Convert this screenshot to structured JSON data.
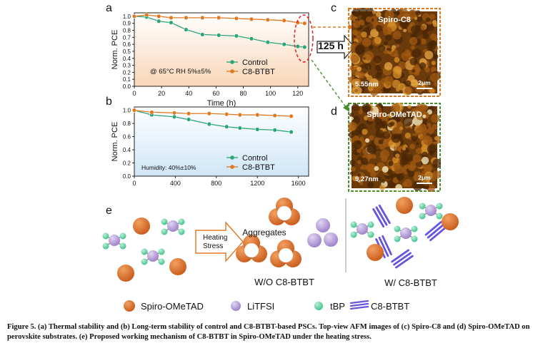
{
  "panels": {
    "a": "a",
    "b": "b",
    "c": "c",
    "d": "d",
    "e": "e"
  },
  "chart_data": [
    {
      "type": "line",
      "panel": "a",
      "xlabel": "Time (h)",
      "ylabel": "Norm. PCE",
      "xlim": [
        0,
        128
      ],
      "ylim": [
        0,
        1.05
      ],
      "xticks": [
        0,
        20,
        40,
        60,
        80,
        100,
        120
      ],
      "yticks": [
        "0.0",
        "0.1",
        "0.2",
        "0.3",
        "0.4",
        "0.5",
        "0.6",
        "0.7",
        "0.8",
        "0.9",
        "1.0"
      ],
      "annotation": "@ 65°C RH 5%±5%",
      "legend": "center-right",
      "background": "#f8d6b8",
      "series": [
        {
          "name": "Control",
          "color": "#2aa577",
          "x": [
            0,
            9,
            18,
            27,
            38,
            50,
            62,
            75,
            86,
            98,
            110,
            120,
            125
          ],
          "y": [
            1.0,
            0.99,
            0.93,
            0.91,
            0.81,
            0.74,
            0.73,
            0.72,
            0.68,
            0.63,
            0.6,
            0.57,
            0.56
          ]
        },
        {
          "name": "C8-BTBT",
          "color": "#e07820",
          "x": [
            0,
            9,
            18,
            27,
            38,
            50,
            62,
            75,
            86,
            98,
            110,
            120,
            125
          ],
          "y": [
            1.0,
            1.02,
            1.0,
            0.98,
            0.98,
            0.98,
            0.98,
            0.97,
            0.96,
            0.95,
            0.94,
            0.91,
            0.9
          ]
        }
      ]
    },
    {
      "type": "line",
      "panel": "b",
      "xlabel": "",
      "ylabel": "Norm. PCE",
      "xlim": [
        0,
        1700
      ],
      "ylim": [
        0,
        1.05
      ],
      "xticks": [
        0,
        400,
        800,
        1200,
        1600
      ],
      "yticks": [
        "0.0",
        "0.2",
        "0.4",
        "0.6",
        "0.8",
        "1.0"
      ],
      "annotation": "Humidity: 40%±10%",
      "legend": "lower-right",
      "background": "#cfe6f7",
      "series": [
        {
          "name": "Control",
          "color": "#2aa577",
          "x": [
            0,
            170,
            390,
            530,
            730,
            900,
            1030,
            1200,
            1370,
            1530
          ],
          "y": [
            1.0,
            0.93,
            0.9,
            0.86,
            0.79,
            0.75,
            0.73,
            0.71,
            0.7,
            0.67
          ]
        },
        {
          "name": "C8-BTBT",
          "color": "#e07820",
          "x": [
            0,
            170,
            390,
            530,
            730,
            900,
            1030,
            1200,
            1370,
            1530
          ],
          "y": [
            1.0,
            0.97,
            0.96,
            0.95,
            0.95,
            0.94,
            0.93,
            0.93,
            0.92,
            0.91
          ]
        }
      ]
    }
  ],
  "callout": "125 h",
  "afm": {
    "c": {
      "title": "Spiro-C8",
      "roughness": "5.55nm",
      "scale": "2μm",
      "border": "#e07820"
    },
    "d": {
      "title": "Spiro-OMeTAD",
      "roughness": "9.27nm",
      "scale": "2μm",
      "border": "#4a8f2a"
    }
  },
  "mechanism": {
    "heating": "Heating\nStress",
    "aggregates": "Aggregates",
    "wo": "W/O C8-BTBT",
    "w": "W/ C8-BTBT"
  },
  "legend_e": [
    {
      "label": "Spiro-OMeTAD",
      "icon": "orange-sphere"
    },
    {
      "label": "LiTFSI",
      "icon": "purple-sphere"
    },
    {
      "label": "tBP",
      "icon": "green-sphere"
    },
    {
      "label": "C8-BTBT",
      "icon": "blue-lines"
    }
  ],
  "colors": {
    "spiro": "#c85a1a",
    "litfsi": "#9b7ec8",
    "tbp": "#3fbf88",
    "c8btbt": "#6655dd"
  },
  "caption": "Figure 5. (a) Thermal stability and (b) Long-term stability of control and C8-BTBT-based PSCs. Top-view AFM images of (c) Spiro-C8 and (d) Spiro-OMeTAD on perovskite substrates. (e) Proposed working mechanism of C8-BTBT in Spiro-OMeTAD under the heating stress."
}
